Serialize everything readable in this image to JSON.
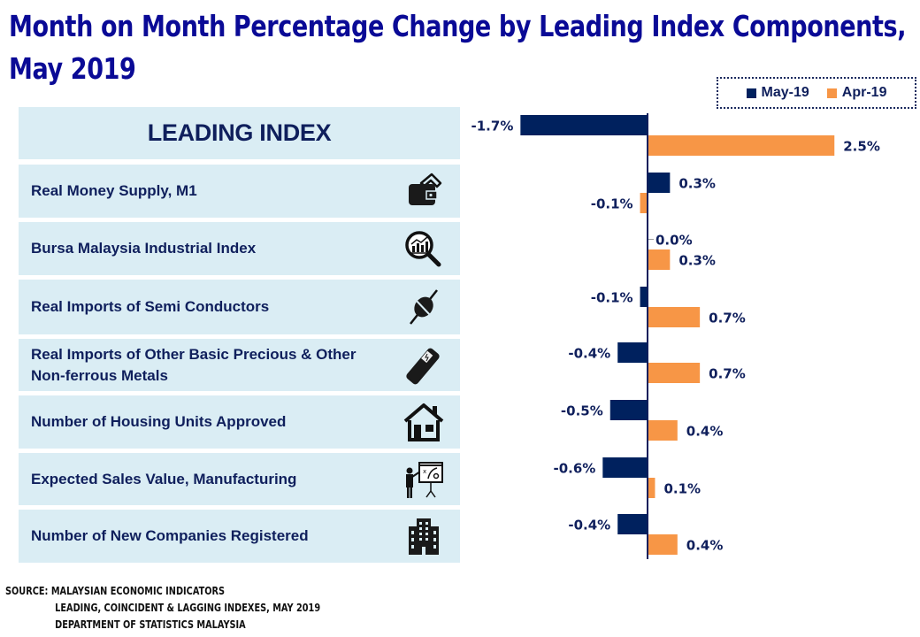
{
  "title": {
    "line1": "Month on Month Percentage Change by Leading Index Components,",
    "line2": "May 2019"
  },
  "legend": [
    {
      "label": "May-19",
      "color": "#00215e"
    },
    {
      "label": "Apr-19",
      "color": "#f79646"
    }
  ],
  "panel": {
    "header": "LEADING INDEX",
    "rows": [
      {
        "label": "Real Money Supply, M1",
        "icon": "wallet-icon"
      },
      {
        "label": "Bursa Malaysia Industrial Index",
        "icon": "magnifier-chart-icon"
      },
      {
        "label": "Real Imports of Semi Conductors",
        "icon": "semiconductor-icon"
      },
      {
        "label": "Real Imports of Other Basic Precious & Other Non-ferrous Metals",
        "icon": "metal-bar-icon"
      },
      {
        "label": "Number of Housing Units Approved",
        "icon": "house-icon"
      },
      {
        "label": "Expected Sales Value, Manufacturing",
        "icon": "presentation-icon"
      },
      {
        "label": "Number of New Companies Registered",
        "icon": "building-icon"
      }
    ]
  },
  "source": {
    "line1": "SOURCE: MALAYSIAN ECONOMIC INDICATORS",
    "line2": "LEADING, COINCIDENT & LAGGING INDEXES, MAY 2019",
    "line3": "DEPARTMENT OF STATISTICS MALAYSIA"
  },
  "chart_data": {
    "type": "bar",
    "orientation": "horizontal",
    "title": "Month on Month Percentage Change by Leading Index Components, May 2019",
    "xlabel": "",
    "ylabel": "",
    "categories": [
      "LEADING INDEX",
      "Real Money Supply, M1",
      "Bursa Malaysia Industrial Index",
      "Real Imports of Semi Conductors",
      "Real Imports of Other Basic Precious & Other Non-ferrous Metals",
      "Number of Housing Units Approved",
      "Expected Sales Value, Manufacturing",
      "Number of New Companies Registered"
    ],
    "series": [
      {
        "name": "May-19",
        "color": "#00215e",
        "values": [
          -1.7,
          0.3,
          0.0,
          -0.1,
          -0.4,
          -0.5,
          -0.6,
          -0.4
        ],
        "labels": [
          "-1.7%",
          "0.3%",
          "0.0%",
          "-0.1%",
          "-0.4%",
          "-0.5%",
          "-0.6%",
          "-0.4%"
        ]
      },
      {
        "name": "Apr-19",
        "color": "#f79646",
        "values": [
          2.5,
          -0.1,
          0.3,
          0.7,
          0.7,
          0.4,
          0.1,
          0.4
        ],
        "labels": [
          "2.5%",
          "-0.1%",
          "0.3%",
          "0.7%",
          "0.7%",
          "0.4%",
          "0.1%",
          "0.4%"
        ]
      }
    ],
    "xlim": [
      -2.0,
      3.0
    ],
    "grid": false,
    "legend_position": "top-right",
    "unit": "%"
  }
}
